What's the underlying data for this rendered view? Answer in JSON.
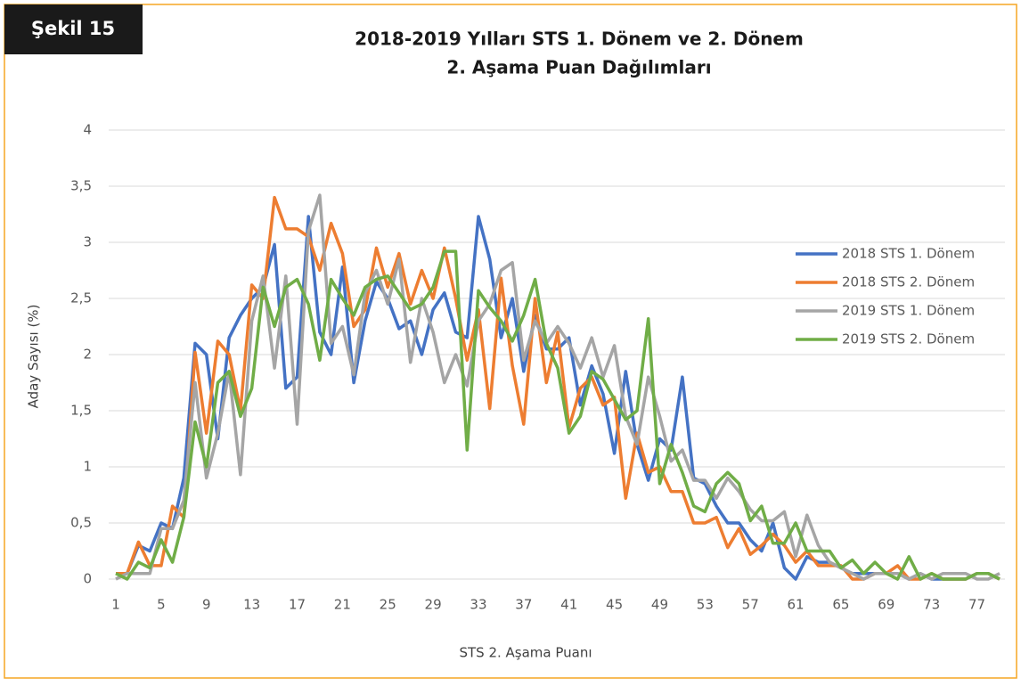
{
  "badge": "Şekil 15",
  "chart_data": {
    "type": "line",
    "title": [
      "2018-2019 Yılları STS 1. Dönem ve 2. Dönem",
      "2. Aşama Puan Dağılımları"
    ],
    "xlabel": "STS 2. Aşama Puanı",
    "ylabel": "Aday Sayısı (%)",
    "x": [
      1,
      2,
      3,
      4,
      5,
      6,
      7,
      8,
      9,
      10,
      11,
      12,
      13,
      14,
      15,
      16,
      17,
      18,
      19,
      20,
      21,
      22,
      23,
      24,
      25,
      26,
      27,
      28,
      29,
      30,
      31,
      32,
      33,
      34,
      35,
      36,
      37,
      38,
      39,
      40,
      41,
      42,
      43,
      44,
      45,
      46,
      47,
      48,
      49,
      50,
      51,
      52,
      53,
      54,
      55,
      56,
      57,
      58,
      59,
      60,
      61,
      62,
      63,
      64,
      65,
      66,
      67,
      68,
      69,
      70,
      71,
      72,
      73,
      74,
      75,
      76,
      77,
      78,
      79
    ],
    "xlim": [
      1,
      79
    ],
    "xticks": [
      1,
      5,
      9,
      13,
      17,
      21,
      25,
      29,
      33,
      37,
      41,
      45,
      49,
      53,
      57,
      61,
      65,
      69,
      73,
      77
    ],
    "ylim": [
      0,
      4
    ],
    "yticks": [
      0,
      {
        "value": 0.5,
        "label": "0,5"
      },
      1,
      {
        "value": 1.5,
        "label": "1,5"
      },
      2,
      {
        "value": 2.5,
        "label": "2,5"
      },
      3,
      {
        "value": 3.5,
        "label": "3,5"
      },
      4
    ],
    "grid": true,
    "legend": "right",
    "series": [
      {
        "name": "2018 STS 1. Dönem",
        "color": "#4472c4",
        "values": [
          0.05,
          0.05,
          0.3,
          0.25,
          0.5,
          0.45,
          0.9,
          2.1,
          2.0,
          1.25,
          2.15,
          2.35,
          2.5,
          2.6,
          2.98,
          1.7,
          1.8,
          3.23,
          2.2,
          2.0,
          2.78,
          1.75,
          2.3,
          2.65,
          2.5,
          2.23,
          2.3,
          2.0,
          2.4,
          2.55,
          2.2,
          2.15,
          3.23,
          2.85,
          2.15,
          2.5,
          1.85,
          2.35,
          2.05,
          2.05,
          2.15,
          1.55,
          1.9,
          1.65,
          1.12,
          1.85,
          1.2,
          0.88,
          1.25,
          1.15,
          1.8,
          0.9,
          0.85,
          0.65,
          0.5,
          0.5,
          0.35,
          0.25,
          0.5,
          0.1,
          0.0,
          0.2,
          0.15,
          0.15,
          0.1,
          0.05,
          0.05,
          0.05,
          0.05,
          0.05,
          0.0,
          0.05,
          0.0,
          0.0,
          0.0,
          0.0,
          0.05,
          0.05,
          0.0
        ]
      },
      {
        "name": "2018 STS 2. Dönem",
        "color": "#ed7d31",
        "values": [
          0.05,
          0.05,
          0.33,
          0.12,
          0.12,
          0.65,
          0.55,
          2.02,
          1.3,
          2.12,
          2.0,
          1.5,
          2.62,
          2.5,
          3.4,
          3.12,
          3.12,
          3.05,
          2.75,
          3.17,
          2.9,
          2.25,
          2.4,
          2.95,
          2.6,
          2.9,
          2.45,
          2.75,
          2.5,
          2.95,
          2.5,
          1.95,
          2.4,
          1.52,
          2.68,
          1.9,
          1.38,
          2.5,
          1.75,
          2.2,
          1.35,
          1.7,
          1.8,
          1.55,
          1.62,
          0.72,
          1.3,
          0.95,
          1.0,
          0.78,
          0.78,
          0.5,
          0.5,
          0.55,
          0.28,
          0.45,
          0.22,
          0.3,
          0.4,
          0.3,
          0.15,
          0.25,
          0.12,
          0.12,
          0.12,
          0.0,
          0.0,
          0.05,
          0.05,
          0.12,
          0.0,
          0.0,
          0.05,
          0.0,
          0.0,
          0.0,
          0.05,
          0.05,
          0.0
        ]
      },
      {
        "name": "2019 STS 1. Dönem",
        "color": "#a5a5a5",
        "values": [
          0.0,
          0.05,
          0.05,
          0.05,
          0.45,
          0.45,
          0.7,
          1.75,
          0.9,
          1.3,
          1.85,
          0.93,
          2.3,
          2.7,
          1.88,
          2.7,
          1.38,
          3.1,
          3.42,
          2.1,
          2.25,
          1.82,
          2.55,
          2.75,
          2.45,
          2.85,
          1.93,
          2.5,
          2.2,
          1.75,
          2.0,
          1.72,
          2.3,
          2.45,
          2.75,
          2.82,
          1.95,
          2.3,
          2.1,
          2.25,
          2.1,
          1.88,
          2.15,
          1.8,
          2.08,
          1.45,
          1.2,
          1.8,
          1.45,
          1.05,
          1.15,
          0.88,
          0.88,
          0.72,
          0.9,
          0.78,
          0.62,
          0.52,
          0.52,
          0.6,
          0.2,
          0.57,
          0.3,
          0.15,
          0.1,
          0.05,
          0.0,
          0.05,
          0.05,
          0.05,
          0.0,
          0.05,
          0.0,
          0.05,
          0.05,
          0.05,
          0.0,
          0.0,
          0.05
        ]
      },
      {
        "name": "2019 STS 2. Dönem",
        "color": "#70ad47",
        "values": [
          0.05,
          0.0,
          0.15,
          0.1,
          0.35,
          0.15,
          0.55,
          1.4,
          1.0,
          1.75,
          1.85,
          1.45,
          1.7,
          2.6,
          2.25,
          2.6,
          2.67,
          2.45,
          1.95,
          2.67,
          2.5,
          2.35,
          2.6,
          2.67,
          2.7,
          2.55,
          2.4,
          2.45,
          2.6,
          2.92,
          2.92,
          1.15,
          2.57,
          2.42,
          2.3,
          2.12,
          2.35,
          2.67,
          2.1,
          1.88,
          1.3,
          1.45,
          1.85,
          1.78,
          1.6,
          1.42,
          1.5,
          2.32,
          0.85,
          1.2,
          0.95,
          0.65,
          0.6,
          0.85,
          0.95,
          0.85,
          0.52,
          0.65,
          0.32,
          0.32,
          0.5,
          0.25,
          0.25,
          0.25,
          0.1,
          0.17,
          0.05,
          0.15,
          0.05,
          0.0,
          0.2,
          0.0,
          0.05,
          0.0,
          0.0,
          0.0,
          0.05,
          0.05,
          0.0
        ]
      }
    ]
  }
}
